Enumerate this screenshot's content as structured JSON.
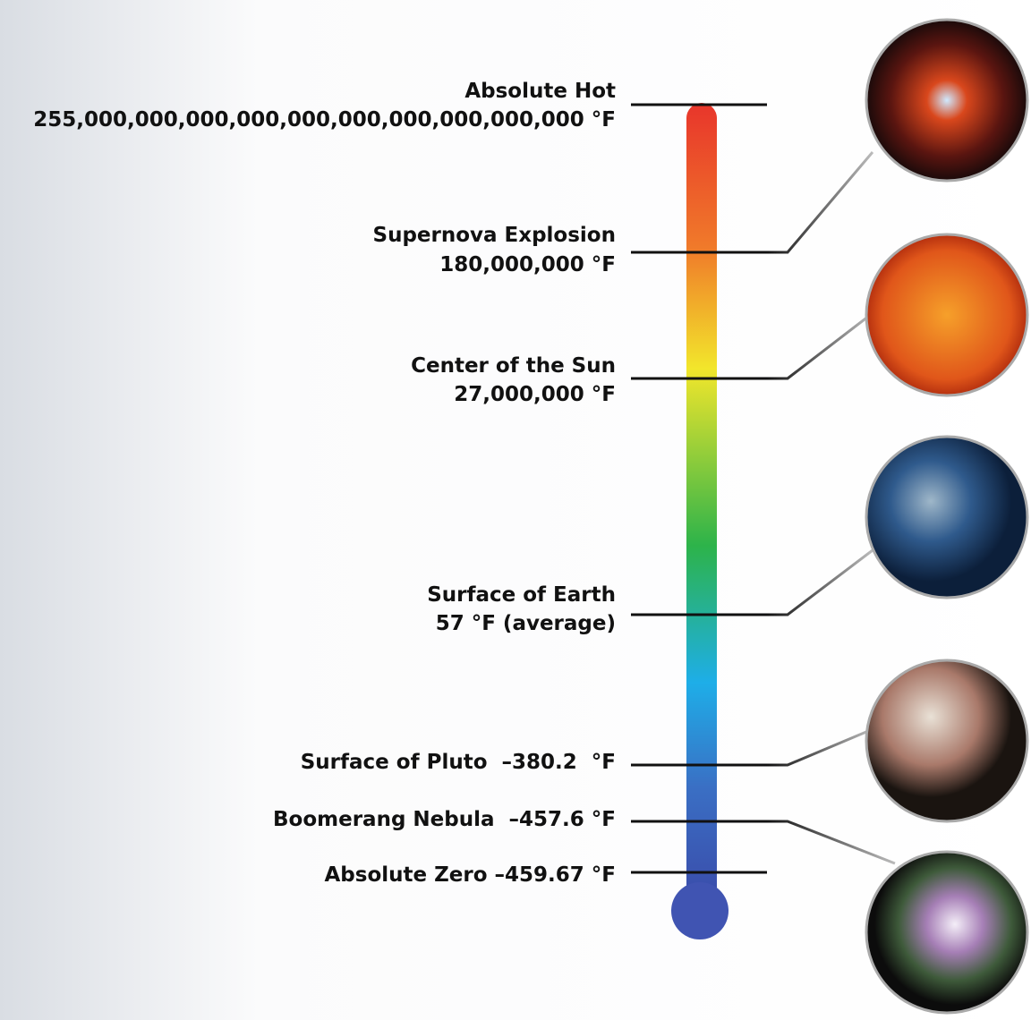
{
  "markers": [
    {
      "lines": [
        "Absolute Hot",
        "255,000,000,000,000,000,000,000,000,000,000 °F"
      ]
    },
    {
      "lines": [
        "Supernova Explosion",
        "180,000,000 °F"
      ]
    },
    {
      "lines": [
        "Center of the Sun",
        "27,000,000 °F"
      ]
    },
    {
      "lines": [
        "Surface of Earth",
        "57 °F (average)"
      ]
    },
    {
      "lines": [
        "Surface of Pluto  –380.2  °F"
      ]
    },
    {
      "lines": [
        "Boomerang Nebula  –457.6 °F"
      ]
    },
    {
      "lines": [
        "Absolute Zero –459.67 °F"
      ]
    }
  ]
}
